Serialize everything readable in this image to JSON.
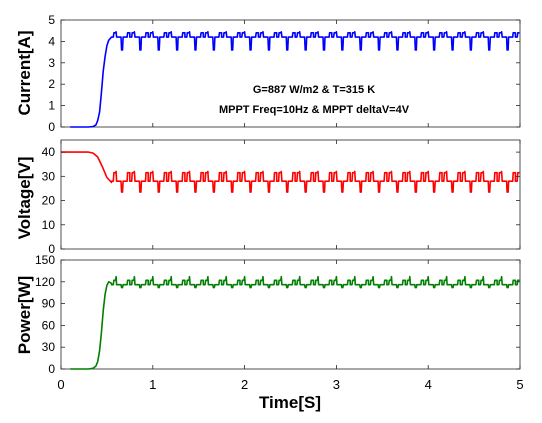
{
  "chart_data": [
    {
      "type": "line",
      "ylabel": "Current[A]",
      "ylim": [
        0,
        5
      ],
      "yticks": [
        0,
        1,
        2,
        3,
        4,
        5
      ],
      "xlim": [
        0,
        5
      ],
      "grid": false,
      "annotations": [
        "G=887 W/m2 & T=315 K",
        "MPPT Freq=10Hz & MPPT deltaV=4V"
      ],
      "series": [
        {
          "color": "#0000ff",
          "startup": {
            "x": [
              0.1,
              0.3,
              0.35,
              0.38,
              0.4,
              0.42,
              0.44,
              0.46,
              0.48,
              0.5,
              0.52,
              0.55
            ],
            "y": [
              0,
              0,
              0.02,
              0.1,
              0.3,
              0.7,
              1.6,
              2.6,
              3.3,
              3.8,
              4.05,
              4.2
            ]
          },
          "steady": {
            "start": 0.55,
            "end": 5.0,
            "period": 0.2,
            "base": 4.2,
            "high": 4.4,
            "low": 3.6,
            "spike": 4.45
          }
        }
      ]
    },
    {
      "type": "line",
      "ylabel": "Voltage[V]",
      "ylim": [
        0,
        45
      ],
      "yticks": [
        0,
        10,
        20,
        30,
        40
      ],
      "xlim": [
        0,
        5
      ],
      "grid": false,
      "series": [
        {
          "color": "#ff0000",
          "startup": {
            "x": [
              0.0,
              0.3,
              0.35,
              0.4,
              0.45,
              0.5,
              0.55
            ],
            "y": [
              40,
              40,
              39.6,
              38,
              34,
              29.5,
              27.5
            ]
          },
          "steady": {
            "start": 0.55,
            "end": 5.0,
            "period": 0.2,
            "base": 28,
            "high": 31.5,
            "low": 23.5,
            "spike": 32
          }
        }
      ]
    },
    {
      "type": "line",
      "ylabel": "Power[W]",
      "xlabel": "Time[S]",
      "ylim": [
        0,
        150
      ],
      "yticks": [
        0,
        30,
        60,
        90,
        120,
        150
      ],
      "xlim": [
        0,
        5
      ],
      "xticks": [
        0,
        1,
        2,
        3,
        4,
        5
      ],
      "grid": false,
      "series": [
        {
          "color": "#007f00",
          "startup": {
            "x": [
              0.1,
              0.3,
              0.35,
              0.38,
              0.4,
              0.42,
              0.44,
              0.46,
              0.48,
              0.5,
              0.52,
              0.55
            ],
            "y": [
              0,
              0,
              1,
              4,
              10,
              25,
              50,
              80,
              103,
              115,
              120,
              118
            ]
          },
          "steady": {
            "start": 0.55,
            "end": 5.0,
            "period": 0.2,
            "base": 116,
            "high": 122,
            "low": 112,
            "spike": 127
          }
        }
      ]
    }
  ]
}
